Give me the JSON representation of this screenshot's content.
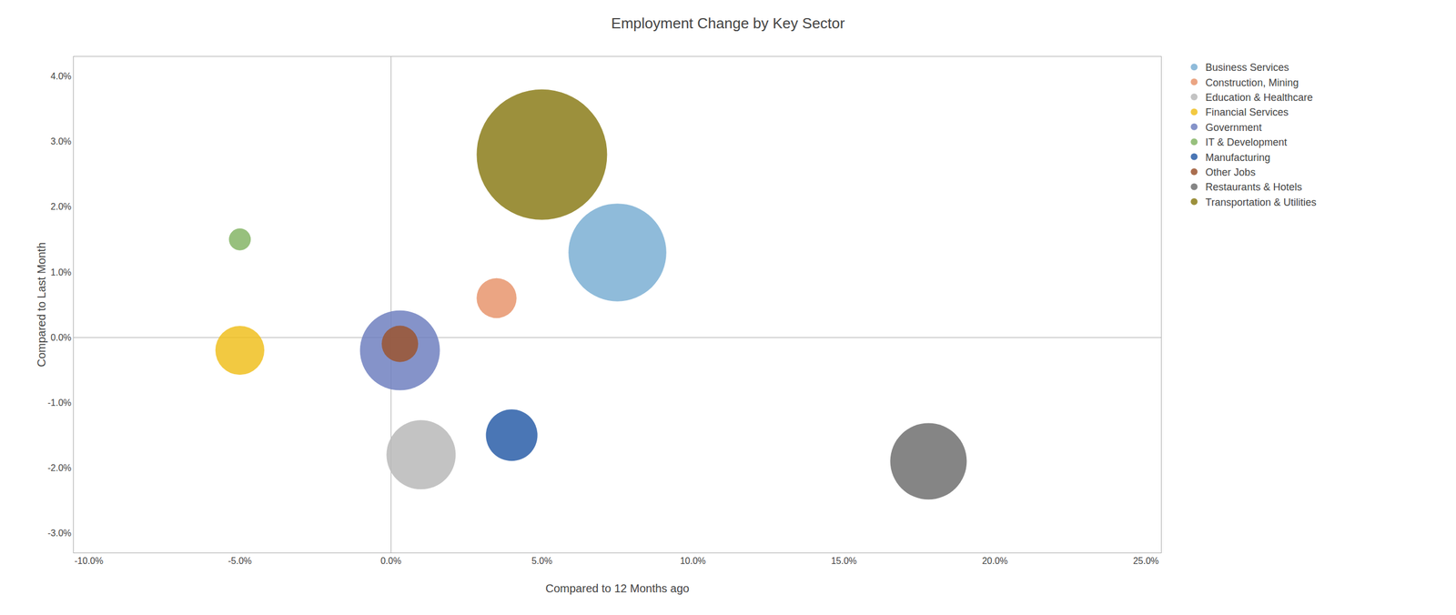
{
  "chart_data": {
    "type": "bubble",
    "title": "Employment Change by Key Sector",
    "xlabel": "Compared to 12 Months ago",
    "ylabel": "Compared to Last Month",
    "xlim": [
      -0.105,
      0.255
    ],
    "ylim": [
      -0.033,
      0.043
    ],
    "xticks": [
      {
        "value": -0.1,
        "label": "-10.0%"
      },
      {
        "value": -0.05,
        "label": "-5.0%"
      },
      {
        "value": 0.0,
        "label": "0.0%"
      },
      {
        "value": 0.05,
        "label": "5.0%"
      },
      {
        "value": 0.1,
        "label": "10.0%"
      },
      {
        "value": 0.15,
        "label": "15.0%"
      },
      {
        "value": 0.2,
        "label": "20.0%"
      },
      {
        "value": 0.25,
        "label": "25.0%"
      }
    ],
    "yticks": [
      {
        "value": -0.03,
        "label": "-3.0%"
      },
      {
        "value": -0.02,
        "label": "-2.0%"
      },
      {
        "value": -0.01,
        "label": "-1.0%"
      },
      {
        "value": 0.0,
        "label": "0.0%"
      },
      {
        "value": 0.01,
        "label": "1.0%"
      },
      {
        "value": 0.02,
        "label": "2.0%"
      },
      {
        "value": 0.03,
        "label": "3.0%"
      },
      {
        "value": 0.04,
        "label": "4.0%"
      }
    ],
    "grid": false,
    "legend": "upper right",
    "series": [
      {
        "name": "Business Services",
        "color": "#7bafd4",
        "x": [
          0.075
        ],
        "values": [
          0.013
        ],
        "size": [
          18000
        ]
      },
      {
        "name": "Construction, Mining",
        "color": "#e8956d",
        "x": [
          0.035
        ],
        "values": [
          0.006
        ],
        "size": [
          3000
        ]
      },
      {
        "name": "Education & Healthcare",
        "color": "#b8b8b8",
        "x": [
          0.01
        ],
        "values": [
          -0.018
        ],
        "size": [
          9000
        ]
      },
      {
        "name": "Financial Services",
        "color": "#f0c020",
        "x": [
          -0.05
        ],
        "values": [
          -0.002
        ],
        "size": [
          4500
        ]
      },
      {
        "name": "Government",
        "color": "#7080bf",
        "x": [
          0.003
        ],
        "values": [
          -0.002
        ],
        "size": [
          12000
        ]
      },
      {
        "name": "IT & Development",
        "color": "#85b566",
        "x": [
          -0.05
        ],
        "values": [
          0.015
        ],
        "size": [
          900
        ]
      },
      {
        "name": "Manufacturing",
        "color": "#2a5ea8",
        "x": [
          0.04
        ],
        "values": [
          -0.015
        ],
        "size": [
          5000
        ]
      },
      {
        "name": "Other Jobs",
        "color": "#9b5530",
        "x": [
          0.003
        ],
        "values": [
          -0.001
        ],
        "size": [
          2500
        ]
      },
      {
        "name": "Restaurants & Hotels",
        "color": "#707070",
        "x": [
          0.178
        ],
        "values": [
          -0.019
        ],
        "size": [
          11000
        ]
      },
      {
        "name": "Transportation & Utilities",
        "color": "#8b7d1a",
        "x": [
          0.05
        ],
        "values": [
          0.028
        ],
        "size": [
          32000
        ]
      }
    ]
  }
}
